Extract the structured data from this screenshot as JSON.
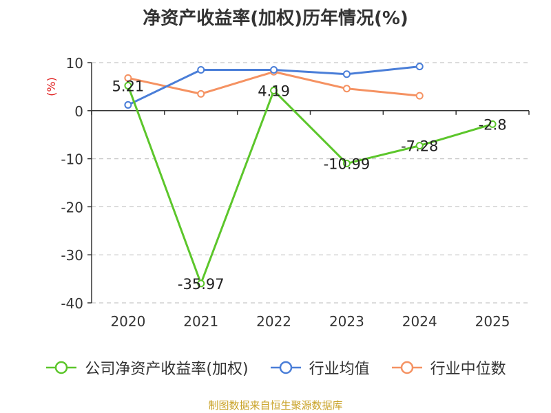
{
  "chart_data": {
    "type": "line",
    "title": "净资产收益率(加权)历年情况(%)",
    "ylabel": "(%)",
    "categories": [
      "2020",
      "2021",
      "2022",
      "2023",
      "2024",
      "2025"
    ],
    "ylim": [
      -40,
      10
    ],
    "yticks": [
      10,
      0,
      -10,
      -20,
      -30,
      -40
    ],
    "grid": true,
    "legend_position": "bottom",
    "series": [
      {
        "name": "公司净资产收益率(加权)",
        "color": "#5cc62b",
        "values": [
          5.21,
          -35.97,
          4.19,
          -10.99,
          -7.28,
          -2.8
        ],
        "labels": [
          "5.21",
          "-35.97",
          "4.19",
          "-10.99",
          "-7.28",
          "-2.8"
        ]
      },
      {
        "name": "行业均值",
        "color": "#4a7ed8",
        "values": [
          1.2,
          8.5,
          8.5,
          7.6,
          9.2,
          null
        ]
      },
      {
        "name": "行业中位数",
        "color": "#f59262",
        "values": [
          6.8,
          3.5,
          8.1,
          4.6,
          3.1,
          null
        ]
      }
    ],
    "source": "制图数据来自恒生聚源数据库"
  }
}
